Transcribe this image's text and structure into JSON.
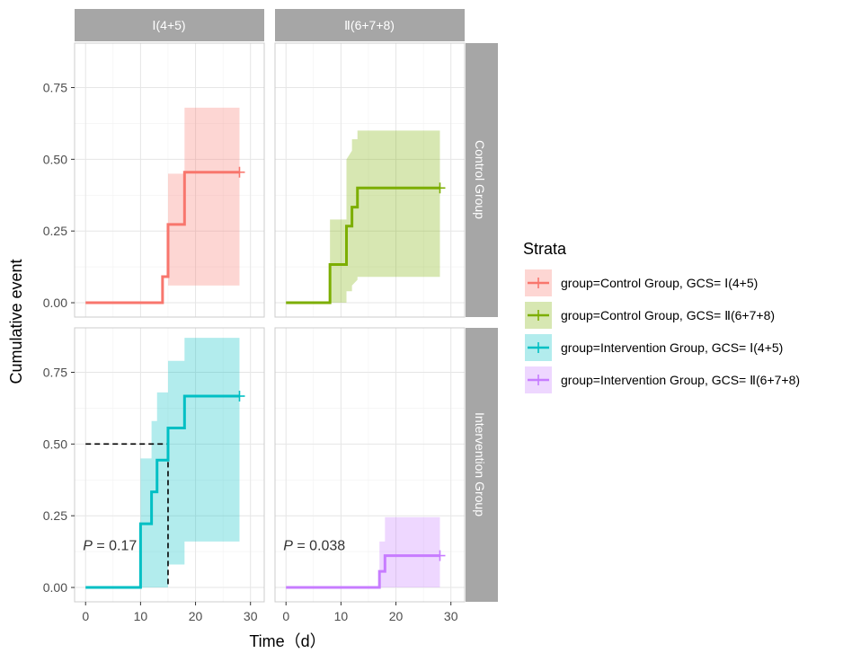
{
  "chart_data": {
    "type": "line",
    "ylabel": "Cumulative event",
    "xlabel": "Time（d）",
    "x_ticks": [
      0,
      10,
      20,
      30
    ],
    "y_ticks": [
      "0.00",
      "0.25",
      "0.50",
      "0.75"
    ],
    "xlim": [
      -2,
      32.5
    ],
    "ylim": [
      -0.05,
      0.905
    ],
    "columns": [
      "Ⅰ(4+5)",
      "Ⅱ(6+7+8)"
    ],
    "rows": [
      "Control Group",
      "Intervention Group"
    ],
    "legend": {
      "title": "Strata",
      "position": "right",
      "entries": [
        "group=Control Group, GCS= Ⅰ(4+5)",
        "group=Control Group, GCS= Ⅱ(6+7+8)",
        "group=Intervention Group, GCS= Ⅰ(4+5)",
        "group=Intervention Group, GCS= Ⅱ(6+7+8)"
      ]
    },
    "panels": [
      {
        "row": 0,
        "col": 0,
        "color": "#F8766D",
        "fill": "#F8766D",
        "steps": [
          [
            0,
            0
          ],
          [
            14,
            0
          ],
          [
            14,
            0.091
          ],
          [
            15,
            0.091
          ],
          [
            15,
            0.273
          ],
          [
            18,
            0.273
          ],
          [
            18,
            0.455
          ],
          [
            28,
            0.455
          ]
        ],
        "band": [
          [
            0,
            0,
            0
          ],
          [
            14,
            0,
            0
          ],
          [
            14,
            0,
            0
          ],
          [
            15,
            0,
            0
          ],
          [
            15,
            0.06,
            0.45
          ],
          [
            18,
            0.06,
            0.45
          ],
          [
            18,
            0.06,
            0.68
          ],
          [
            28,
            0.06,
            0.68
          ]
        ],
        "censor": [
          28,
          0.455
        ],
        "p_value": ""
      },
      {
        "row": 0,
        "col": 1,
        "color": "#7CAE00",
        "fill": "#7CAE00",
        "steps": [
          [
            0,
            0
          ],
          [
            8,
            0
          ],
          [
            8,
            0.133
          ],
          [
            11,
            0.133
          ],
          [
            11,
            0.267
          ],
          [
            12,
            0.267
          ],
          [
            12,
            0.333
          ],
          [
            13,
            0.333
          ],
          [
            13,
            0.4
          ],
          [
            28,
            0.4
          ]
        ],
        "band": [
          [
            0,
            0,
            0
          ],
          [
            8,
            0,
            0
          ],
          [
            8,
            0,
            0.29
          ],
          [
            11,
            0,
            0.29
          ],
          [
            11,
            0.04,
            0.5
          ],
          [
            12,
            0.04,
            0.53
          ],
          [
            12,
            0.06,
            0.57
          ],
          [
            13,
            0.08,
            0.57
          ],
          [
            13,
            0.09,
            0.6
          ],
          [
            28,
            0.09,
            0.6
          ]
        ],
        "censor": [
          28,
          0.4
        ],
        "p_value": ""
      },
      {
        "row": 1,
        "col": 0,
        "color": "#00BFC4",
        "fill": "#00BFC4",
        "steps": [
          [
            0,
            0
          ],
          [
            10,
            0
          ],
          [
            10,
            0.222
          ],
          [
            12,
            0.222
          ],
          [
            12,
            0.333
          ],
          [
            13,
            0.333
          ],
          [
            13,
            0.444
          ],
          [
            15,
            0.444
          ],
          [
            15,
            0.556
          ],
          [
            18,
            0.556
          ],
          [
            18,
            0.667
          ],
          [
            28,
            0.667
          ]
        ],
        "band": [
          [
            0,
            0,
            0
          ],
          [
            10,
            0,
            0
          ],
          [
            10,
            0,
            0.45
          ],
          [
            12,
            0,
            0.45
          ],
          [
            12,
            0,
            0.58
          ],
          [
            13,
            0,
            0.58
          ],
          [
            13,
            0,
            0.68
          ],
          [
            15,
            0,
            0.68
          ],
          [
            15,
            0.08,
            0.79
          ],
          [
            18,
            0.08,
            0.79
          ],
          [
            18,
            0.16,
            0.87
          ],
          [
            28,
            0.16,
            0.87
          ]
        ],
        "censor": [
          28,
          0.667
        ],
        "median": {
          "x": 15,
          "y": 0.5
        },
        "p_value": "0.17"
      },
      {
        "row": 1,
        "col": 1,
        "color": "#C77CFF",
        "fill": "#C77CFF",
        "steps": [
          [
            0,
            0
          ],
          [
            17,
            0
          ],
          [
            17,
            0.056
          ],
          [
            18,
            0.056
          ],
          [
            18,
            0.111
          ],
          [
            28,
            0.111
          ]
        ],
        "band": [
          [
            0,
            0,
            0
          ],
          [
            17,
            0,
            0
          ],
          [
            17,
            0,
            0.16
          ],
          [
            18,
            0,
            0.16
          ],
          [
            18,
            0,
            0.245
          ],
          [
            28,
            0,
            0.245
          ]
        ],
        "censor": [
          28,
          0.111
        ],
        "p_value": "0.038"
      }
    ],
    "p_label": "P"
  }
}
